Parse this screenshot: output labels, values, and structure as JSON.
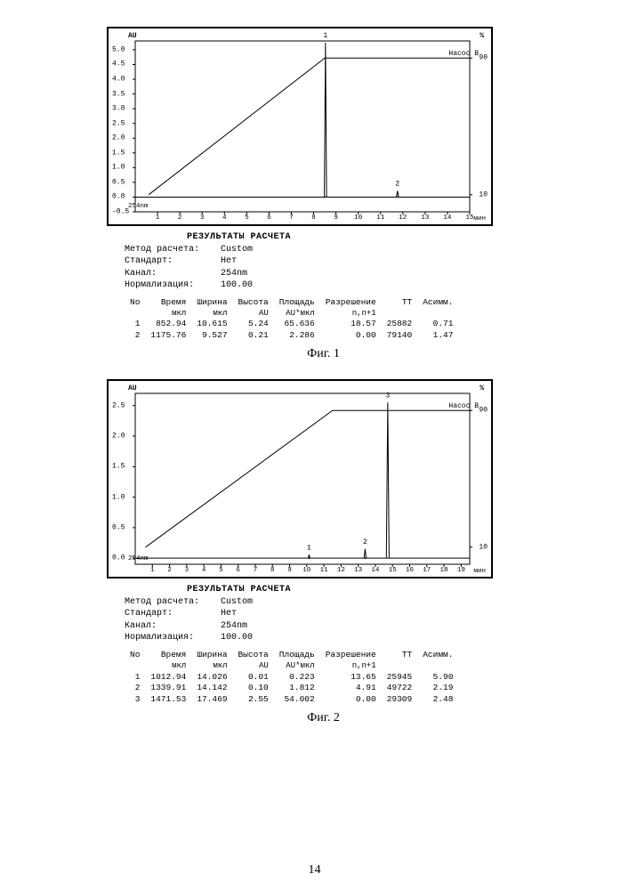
{
  "page_number": "14",
  "fig1": {
    "caption": "Фиг. 1",
    "chart": {
      "type": "chromatogram-line",
      "left_axis": {
        "label": "AU",
        "ticks": [
          -0.5,
          0.0,
          0.5,
          1.0,
          1.5,
          2.0,
          2.5,
          3.0,
          3.5,
          4.0,
          4.5,
          5.0
        ],
        "lim": [
          -0.5,
          5.3
        ]
      },
      "right_axis": {
        "label": "%",
        "ticks": [
          10,
          90
        ],
        "lim": [
          0,
          100
        ]
      },
      "x_axis": {
        "unit": "мин",
        "ticks": [
          1,
          2,
          3,
          4,
          5,
          6,
          7,
          8,
          9,
          10,
          11,
          12,
          13,
          14,
          15
        ],
        "lim": [
          0,
          15
        ]
      },
      "bottom_label": "254nm",
      "series_label": "Насос B",
      "gradient": {
        "points": [
          [
            0.6,
            10
          ],
          [
            8.5,
            90
          ],
          [
            15,
            90
          ]
        ],
        "color": "#000000",
        "width": 1
      },
      "baseline_y": 0.0,
      "peaks": [
        {
          "label": "1",
          "rt_min": 8.53,
          "height": 5.24,
          "width": 0.1
        },
        {
          "label": "2",
          "rt_min": 11.76,
          "height": 0.21,
          "width": 0.1
        }
      ],
      "background_color": "#ffffff",
      "axis_color": "#000000",
      "tick_font_size": 8
    },
    "results": {
      "title": "РЕЗУЛЬТАТЫ РАСЧЕТА",
      "meta": [
        [
          "Метод расчета:",
          "Custom"
        ],
        [
          "Стандарт:",
          "Нет"
        ],
        [
          "Канал:",
          "254nm"
        ],
        [
          "Нормализация:",
          "100.00"
        ]
      ],
      "columns": [
        "No",
        "Время",
        "Ширина",
        "Высота",
        "Площадь",
        "Разрешение",
        "ТТ",
        "Асимм."
      ],
      "sub_columns": [
        "",
        "мкл",
        "мкл",
        "AU",
        "AU*мкл",
        "n,n+1",
        "",
        ""
      ],
      "rows": [
        [
          "1",
          "852.94",
          "10.615",
          "5.24",
          "65.636",
          "18.57",
          "25882",
          "0.71"
        ],
        [
          "2",
          "1175.76",
          "9.527",
          "0.21",
          "2.286",
          "0.00",
          "79140",
          "1.47"
        ]
      ]
    }
  },
  "fig2": {
    "caption": "Фиг. 2",
    "chart": {
      "type": "chromatogram-line",
      "left_axis": {
        "label": "AU",
        "ticks": [
          0.0,
          0.5,
          1.0,
          1.5,
          2.0,
          2.5
        ],
        "lim": [
          -0.1,
          2.7
        ]
      },
      "right_axis": {
        "label": "%",
        "ticks": [
          10,
          90
        ],
        "lim": [
          0,
          100
        ]
      },
      "x_axis": {
        "unit": "мин",
        "ticks": [
          1,
          2,
          3,
          4,
          5,
          6,
          7,
          8,
          9,
          10,
          11,
          12,
          13,
          14,
          15,
          16,
          17,
          18,
          19
        ],
        "lim": [
          0,
          19.5
        ]
      },
      "bottom_label": "254nm",
      "series_label": "Насос B",
      "gradient": {
        "points": [
          [
            0.6,
            10
          ],
          [
            11.5,
            90
          ],
          [
            19.5,
            90
          ]
        ],
        "color": "#000000",
        "width": 1
      },
      "baseline_y": 0.0,
      "peaks": [
        {
          "label": "1",
          "rt_min": 10.13,
          "height": 0.05,
          "width": 0.12
        },
        {
          "label": "2",
          "rt_min": 13.4,
          "height": 0.15,
          "width": 0.12
        },
        {
          "label": "3",
          "rt_min": 14.72,
          "height": 2.55,
          "width": 0.16
        }
      ],
      "background_color": "#ffffff",
      "axis_color": "#000000",
      "tick_font_size": 8
    },
    "results": {
      "title": "РЕЗУЛЬТАТЫ РАСЧЕТА",
      "meta": [
        [
          "Метод расчета:",
          "Custom"
        ],
        [
          "Стандарт:",
          "Нет"
        ],
        [
          "Канал:",
          "254nm"
        ],
        [
          "Нормализация:",
          "100.00"
        ]
      ],
      "columns": [
        "No",
        "Время",
        "Ширина",
        "Высота",
        "Площадь",
        "Разрешение",
        "ТТ",
        "Асимм."
      ],
      "sub_columns": [
        "",
        "мкл",
        "мкл",
        "AU",
        "AU*мкл",
        "n,n+1",
        "",
        ""
      ],
      "rows": [
        [
          "1",
          "1012.94",
          "14.026",
          "0.01",
          "0.223",
          "13.65",
          "25945",
          "5.90"
        ],
        [
          "2",
          "1339.91",
          "14.142",
          "0.10",
          "1.812",
          "4.91",
          "49722",
          "2.19"
        ],
        [
          "3",
          "1471.53",
          "17.469",
          "2.55",
          "54.002",
          "0.00",
          "29309",
          "2.48"
        ]
      ]
    }
  }
}
